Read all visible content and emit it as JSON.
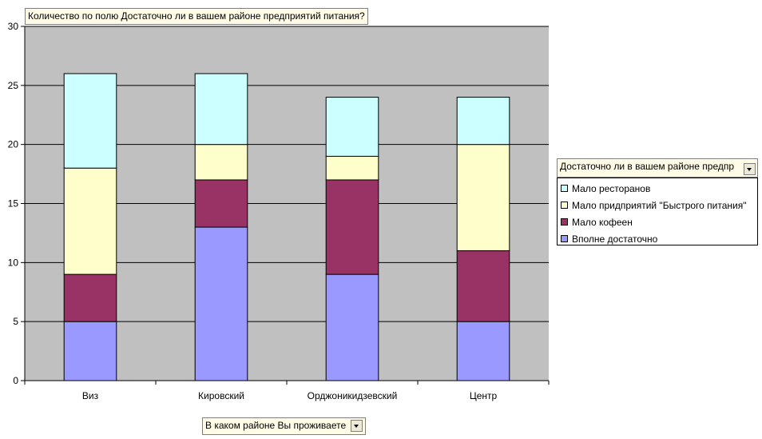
{
  "chart_data": {
    "type": "bar",
    "stacked": true,
    "title": "Количество по полю Достаточно ли в вашем районе предприятий питания?",
    "category_field": "В каком районе Вы проживаете",
    "legend_field": "Достаточно ли в вашем районе предпр",
    "categories": [
      "Виз",
      "Кировский",
      "Орджоникидзевский",
      "Центр"
    ],
    "series": [
      {
        "name": "Вполне достаточно",
        "color": "#9999ff",
        "values": [
          5,
          13,
          9,
          5
        ]
      },
      {
        "name": "Мало кофеен",
        "color": "#993366",
        "values": [
          4,
          4,
          8,
          6
        ]
      },
      {
        "name": "Мало придприятий \"Быстрого питания\"",
        "color": "#ffffcc",
        "values": [
          9,
          3,
          2,
          9
        ]
      },
      {
        "name": "Мало ресторанов",
        "color": "#ccffff",
        "values": [
          8,
          6,
          5,
          4
        ]
      }
    ],
    "legend_order": [
      "Мало ресторанов",
      "Мало придприятий \"Быстрого питания\"",
      "Мало кофеен",
      "Вполне достаточно"
    ],
    "ylim": [
      0,
      30
    ],
    "yticks": [
      0,
      5,
      10,
      15,
      20,
      25,
      30
    ],
    "grid": true,
    "plot_background": "#c0c0c0",
    "legend_position": "right"
  }
}
